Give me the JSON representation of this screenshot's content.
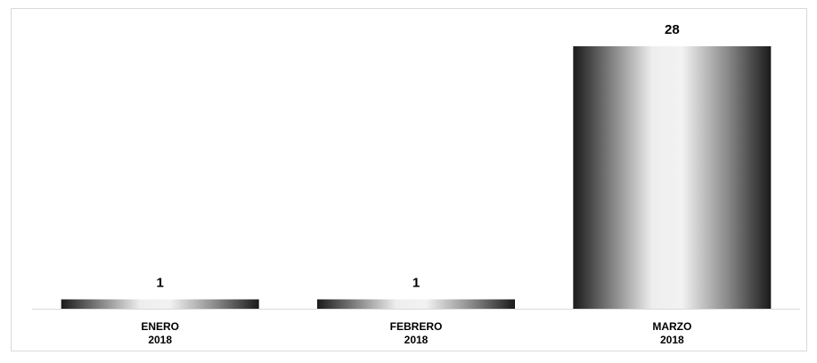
{
  "chart_data": {
    "type": "bar",
    "categories": [
      [
        "ENERO",
        "2018"
      ],
      [
        "FEBRERO",
        "2018"
      ],
      [
        "MARZO",
        "2018"
      ]
    ],
    "values": [
      1,
      1,
      28
    ],
    "data_labels": [
      "1",
      "1",
      "28"
    ],
    "title": "",
    "xlabel": "",
    "ylabel": "",
    "ylim": [
      0,
      28
    ],
    "grid": false,
    "legend": "none",
    "bar_fill": "metallic gray gradient",
    "colors": {
      "bar_dark": "#1a1a1a",
      "bar_light": "#f2f2f2",
      "axis": "#d9d9d9",
      "frame": "#d9d9d9",
      "text": "#000000"
    }
  }
}
